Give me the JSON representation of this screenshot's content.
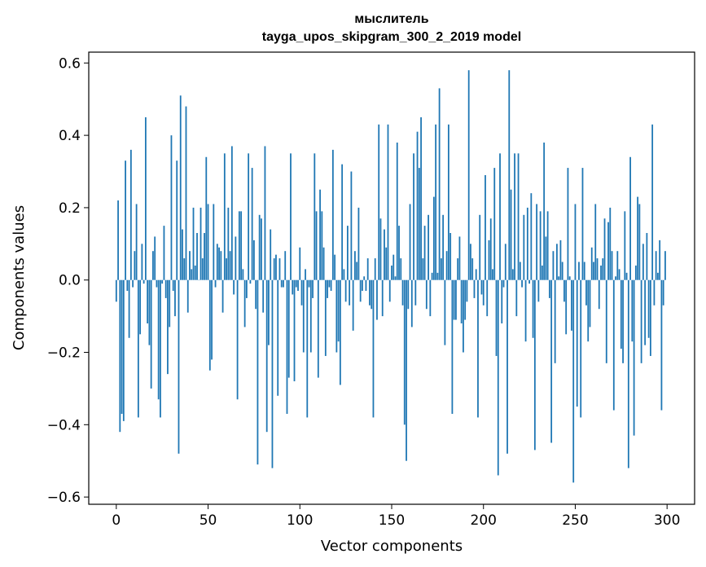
{
  "chart_data": {
    "type": "bar",
    "title": "мыслитель",
    "subtitle": "tayga_upos_skipgram_300_2_2019 model",
    "xlabel": "Vector components",
    "ylabel": "Components values",
    "xlim": [
      -15,
      315
    ],
    "ylim": [
      -0.62,
      0.63
    ],
    "xticks": [
      0,
      50,
      100,
      150,
      200,
      250,
      300
    ],
    "xtick_labels": [
      "0",
      "50",
      "100",
      "150",
      "200",
      "250",
      "300"
    ],
    "yticks": [
      -0.6,
      -0.4,
      -0.2,
      0.0,
      0.2,
      0.4,
      0.6
    ],
    "ytick_labels": [
      "−0.6",
      "−0.4",
      "−0.2",
      "0.0",
      "0.2",
      "0.4",
      "0.6"
    ],
    "grid": false,
    "bar_color": "#1f77b4",
    "values": [
      -0.06,
      0.22,
      -0.42,
      -0.37,
      -0.39,
      0.33,
      -0.03,
      -0.16,
      0.36,
      -0.02,
      0.08,
      0.21,
      -0.38,
      -0.15,
      0.1,
      -0.01,
      0.45,
      -0.12,
      -0.18,
      -0.3,
      0.08,
      0.12,
      -0.02,
      -0.33,
      -0.38,
      -0.01,
      0.15,
      -0.05,
      -0.26,
      -0.13,
      0.4,
      -0.03,
      -0.1,
      0.33,
      -0.48,
      0.51,
      0.14,
      0.06,
      0.48,
      -0.09,
      0.08,
      0.03,
      0.2,
      0.04,
      0.13,
      0.0,
      0.2,
      0.06,
      0.13,
      0.34,
      0.21,
      -0.25,
      -0.22,
      0.21,
      -0.02,
      0.1,
      0.09,
      0.08,
      -0.09,
      0.35,
      0.06,
      0.2,
      0.08,
      0.37,
      -0.04,
      0.12,
      -0.33,
      0.19,
      0.19,
      0.03,
      -0.13,
      -0.05,
      0.35,
      -0.01,
      0.31,
      0.11,
      -0.08,
      -0.51,
      0.18,
      0.17,
      -0.09,
      0.37,
      -0.42,
      -0.18,
      0.14,
      -0.52,
      0.06,
      0.07,
      -0.32,
      0.06,
      -0.02,
      -0.02,
      0.08,
      -0.37,
      -0.27,
      0.35,
      -0.04,
      -0.28,
      -0.02,
      -0.03,
      0.09,
      -0.07,
      -0.2,
      0.03,
      -0.38,
      -0.02,
      -0.2,
      -0.05,
      0.35,
      0.19,
      -0.27,
      0.25,
      0.19,
      0.09,
      -0.21,
      -0.05,
      -0.02,
      -0.03,
      0.36,
      0.07,
      -0.2,
      -0.17,
      -0.29,
      0.32,
      0.03,
      -0.06,
      0.15,
      -0.07,
      0.3,
      -0.14,
      0.08,
      0.05,
      0.2,
      -0.06,
      -0.03,
      0.01,
      -0.03,
      0.06,
      -0.07,
      -0.08,
      -0.38,
      0.06,
      -0.11,
      0.43,
      0.17,
      -0.1,
      0.14,
      0.09,
      0.43,
      -0.06,
      0.04,
      0.07,
      0.01,
      0.38,
      0.15,
      0.06,
      -0.07,
      -0.4,
      -0.5,
      -0.08,
      0.21,
      -0.13,
      0.35,
      -0.07,
      0.41,
      0.31,
      0.45,
      0.06,
      0.15,
      -0.08,
      0.18,
      -0.1,
      0.02,
      0.23,
      0.43,
      0.02,
      0.53,
      0.06,
      0.18,
      -0.18,
      0.08,
      0.43,
      0.13,
      -0.37,
      -0.11,
      -0.11,
      0.06,
      0.12,
      -0.12,
      -0.2,
      -0.11,
      -0.06,
      0.58,
      0.1,
      0.06,
      -0.05,
      0.03,
      -0.38,
      0.18,
      -0.04,
      -0.07,
      0.29,
      -0.1,
      0.11,
      0.17,
      0.03,
      0.31,
      -0.21,
      -0.54,
      0.35,
      -0.12,
      -0.02,
      0.1,
      -0.48,
      0.58,
      0.25,
      0.03,
      0.35,
      -0.1,
      0.35,
      0.05,
      -0.02,
      0.18,
      -0.17,
      0.2,
      -0.01,
      0.24,
      -0.16,
      -0.47,
      0.21,
      -0.06,
      0.19,
      0.04,
      0.38,
      0.12,
      0.19,
      -0.05,
      -0.45,
      0.08,
      -0.23,
      0.1,
      0.01,
      0.11,
      0.05,
      -0.06,
      -0.15,
      0.31,
      0.01,
      -0.14,
      -0.56,
      0.21,
      -0.35,
      0.05,
      -0.38,
      0.31,
      0.05,
      -0.07,
      -0.17,
      -0.13,
      0.09,
      0.05,
      0.21,
      0.06,
      -0.08,
      0.04,
      0.06,
      0.17,
      -0.23,
      0.16,
      0.2,
      0.08,
      -0.36,
      0.01,
      0.08,
      0.03,
      -0.19,
      -0.23,
      0.19,
      0.02,
      -0.52,
      0.34,
      -0.17,
      -0.43,
      0.04,
      0.23,
      0.21,
      -0.23,
      0.1,
      -0.18,
      0.13,
      -0.16,
      -0.21,
      0.43,
      -0.07,
      0.08,
      0.02,
      0.11,
      -0.36,
      -0.07,
      0.08
    ]
  }
}
